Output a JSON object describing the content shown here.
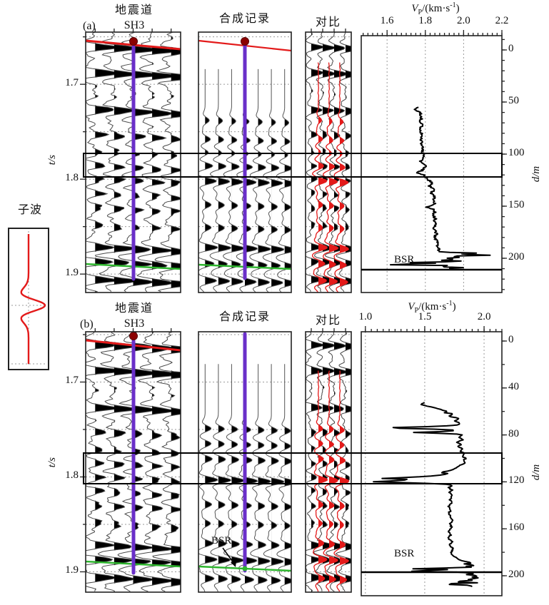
{
  "figure": {
    "panel_a_tag": "(a)",
    "panel_b_tag": "(b)",
    "wavelet_label": "子波",
    "col_titles": {
      "seismic_line1": "地震道",
      "seismic_line2": "SH3",
      "synthetic": "合成记录",
      "compare": "对比"
    },
    "vp_axis": {
      "v": "V",
      "sub": "P",
      "rest": "/(km·s",
      "sup": "-1",
      "close": ")"
    },
    "time_axis_label": "t/s",
    "depth_axis_label": "d/m",
    "bsr_label": "BSR"
  },
  "colors": {
    "red": "#e31a1a",
    "dark_red": "#8b0000",
    "purple": "#6a2fc9",
    "green": "#2db52d",
    "trace_stroke": "#4a4a4a",
    "grid_dot": "#9a9a9a",
    "black": "#000000"
  },
  "chart_data": [
    {
      "panel": "a",
      "type": "seismic-wiggle-with-velocity-log",
      "columns": [
        "地震道 SH3",
        "合成记录",
        "对比",
        "Vp log"
      ],
      "time_axis": {
        "label": "t/s",
        "ticks": [
          "1.7",
          "1.8",
          "1.9"
        ],
        "minor": [
          "1.65",
          "1.75",
          "1.85"
        ],
        "range": [
          1.645,
          1.92
        ]
      },
      "vp_axis": {
        "label": "Vp/(km·s-1)",
        "ticks": [
          "1.6",
          "1.8",
          "2.0",
          "2.2"
        ],
        "range": [
          1.465,
          2.2
        ]
      },
      "depth_axis": {
        "label": "d/m",
        "ticks": [
          "0",
          "50",
          "100",
          "150",
          "200"
        ],
        "minor_step": 10,
        "range": [
          0,
          233
        ]
      },
      "highlight_band_depth": [
        99,
        122
      ],
      "bsr": {
        "label": "BSR",
        "depth": 211
      },
      "seismic_events": [
        [
          1.661,
          1.2
        ],
        [
          1.688,
          1.35
        ],
        [
          1.727,
          1.15
        ],
        [
          1.753,
          0.55
        ],
        [
          1.771,
          0.35
        ],
        [
          1.786,
          0.5
        ],
        [
          1.8,
          0.55
        ],
        [
          1.815,
          0.45
        ],
        [
          1.83,
          0.45
        ],
        [
          1.849,
          0.4
        ],
        [
          1.872,
          1.1
        ],
        [
          1.887,
          0.9
        ],
        [
          1.906,
          1.15
        ]
      ],
      "synthetic_events": [
        [
          1.738,
          0.35
        ],
        [
          1.758,
          0.45
        ],
        [
          1.772,
          0.3
        ],
        [
          1.786,
          0.65
        ],
        [
          1.802,
          0.95
        ],
        [
          1.827,
          0.5
        ],
        [
          1.851,
          0.5
        ],
        [
          1.872,
          1.05
        ],
        [
          1.889,
          0.75
        ],
        [
          1.907,
          0.95
        ]
      ],
      "vp_log": [
        [
          55,
          1.76
        ],
        [
          57,
          1.745
        ],
        [
          60,
          1.77
        ],
        [
          64,
          1.78
        ],
        [
          68,
          1.775
        ],
        [
          72,
          1.78
        ],
        [
          76,
          1.775
        ],
        [
          80,
          1.78
        ],
        [
          84,
          1.775
        ],
        [
          88,
          1.785
        ],
        [
          92,
          1.78
        ],
        [
          96,
          1.785
        ],
        [
          100,
          1.79
        ],
        [
          104,
          1.785
        ],
        [
          107,
          1.775
        ],
        [
          110,
          1.8
        ],
        [
          113,
          1.795
        ],
        [
          116,
          1.78
        ],
        [
          118,
          1.755
        ],
        [
          120,
          1.79
        ],
        [
          122,
          1.8
        ],
        [
          125,
          1.815
        ],
        [
          128,
          1.84
        ],
        [
          131,
          1.82
        ],
        [
          134,
          1.855
        ],
        [
          137,
          1.83
        ],
        [
          140,
          1.85
        ],
        [
          143,
          1.842
        ],
        [
          146,
          1.85
        ],
        [
          149,
          1.845
        ],
        [
          151,
          1.8
        ],
        [
          153,
          1.84
        ],
        [
          156,
          1.85
        ],
        [
          159,
          1.84
        ],
        [
          162,
          1.855
        ],
        [
          165,
          1.845
        ],
        [
          168,
          1.855
        ],
        [
          171,
          1.84
        ],
        [
          174,
          1.85
        ],
        [
          177,
          1.858
        ],
        [
          180,
          1.85
        ],
        [
          183,
          1.858
        ],
        [
          186,
          1.865
        ],
        [
          189,
          1.858
        ],
        [
          191,
          1.87
        ],
        [
          193,
          1.865
        ],
        [
          194,
          1.88
        ],
        [
          195,
          2.06
        ],
        [
          196,
          1.95
        ],
        [
          197,
          2.17
        ],
        [
          198,
          1.92
        ],
        [
          199,
          1.99
        ],
        [
          200,
          1.9
        ],
        [
          201,
          1.96
        ],
        [
          202,
          1.88
        ],
        [
          203,
          2.03
        ],
        [
          204,
          1.7
        ],
        [
          205,
          1.89
        ],
        [
          206,
          1.53
        ],
        [
          207,
          1.96
        ],
        [
          208,
          1.86
        ],
        [
          209,
          2.0
        ],
        [
          210,
          1.9
        ]
      ]
    },
    {
      "panel": "b",
      "type": "seismic-wiggle-with-velocity-log",
      "columns": [
        "地震道 SH3",
        "合成记录",
        "对比",
        "Vp log"
      ],
      "time_axis": {
        "label": "t/s",
        "ticks": [
          "1.7",
          "1.8",
          "1.9"
        ],
        "minor": [
          "1.65",
          "1.75",
          "1.85"
        ],
        "range": [
          1.647,
          1.922
        ]
      },
      "vp_axis": {
        "label": "Vp/(km·s-1)",
        "ticks": [
          "1.0",
          "1.5",
          "2.0"
        ],
        "range": [
          0.965,
          2.15
        ]
      },
      "depth_axis": {
        "label": "d/m",
        "ticks": [
          "0",
          "40",
          "80",
          "120",
          "160",
          "200"
        ],
        "minor_step": 20,
        "range": [
          0,
          215
        ]
      },
      "highlight_band_depth": [
        95,
        122
      ],
      "bsr": {
        "label": "BSR",
        "depth": 197
      },
      "seismic_events": [
        [
          1.661,
          1.2
        ],
        [
          1.688,
          1.35
        ],
        [
          1.727,
          1.15
        ],
        [
          1.753,
          0.55
        ],
        [
          1.771,
          0.35
        ],
        [
          1.786,
          0.5
        ],
        [
          1.8,
          0.55
        ],
        [
          1.815,
          0.45
        ],
        [
          1.83,
          0.45
        ],
        [
          1.849,
          0.4
        ],
        [
          1.872,
          1.1
        ],
        [
          1.887,
          0.9
        ],
        [
          1.906,
          1.15
        ]
      ],
      "synthetic_events": [
        [
          1.749,
          0.5
        ],
        [
          1.765,
          0.5
        ],
        [
          1.781,
          0.6
        ],
        [
          1.803,
          1.05
        ],
        [
          1.829,
          0.55
        ],
        [
          1.849,
          0.45
        ],
        [
          1.87,
          0.65
        ],
        [
          1.887,
          1.0
        ],
        [
          1.907,
          0.75
        ]
      ],
      "vp_log": [
        [
          52,
          1.5
        ],
        [
          54,
          1.46
        ],
        [
          56,
          1.55
        ],
        [
          58,
          1.62
        ],
        [
          60,
          1.7
        ],
        [
          61,
          1.66
        ],
        [
          62,
          1.75
        ],
        [
          64,
          1.7
        ],
        [
          66,
          1.79
        ],
        [
          68,
          1.75
        ],
        [
          70,
          1.8
        ],
        [
          72,
          1.77
        ],
        [
          73,
          1.5
        ],
        [
          74,
          1.12
        ],
        [
          75,
          1.55
        ],
        [
          76,
          1.78
        ],
        [
          77,
          1.7
        ],
        [
          78,
          1.38
        ],
        [
          79,
          1.75
        ],
        [
          80,
          1.82
        ],
        [
          82,
          1.78
        ],
        [
          84,
          1.83
        ],
        [
          86,
          1.77
        ],
        [
          88,
          1.81
        ],
        [
          90,
          1.78
        ],
        [
          92,
          1.82
        ],
        [
          94,
          1.8
        ],
        [
          96,
          1.84
        ],
        [
          98,
          1.81
        ],
        [
          100,
          1.85
        ],
        [
          102,
          1.82
        ],
        [
          104,
          1.84
        ],
        [
          106,
          1.8
        ],
        [
          108,
          1.77
        ],
        [
          110,
          1.73
        ],
        [
          112,
          1.62
        ],
        [
          113,
          1.7
        ],
        [
          114,
          1.66
        ],
        [
          115,
          1.55
        ],
        [
          116,
          1.42
        ],
        [
          117,
          1.12
        ],
        [
          118,
          1.4
        ],
        [
          119,
          1.25
        ],
        [
          120,
          1.05
        ],
        [
          121,
          1.45
        ],
        [
          122,
          1.68
        ],
        [
          123,
          1.74
        ],
        [
          125,
          1.7
        ],
        [
          127,
          1.73
        ],
        [
          129,
          1.71
        ],
        [
          132,
          1.73
        ],
        [
          135,
          1.71
        ],
        [
          138,
          1.73
        ],
        [
          141,
          1.7
        ],
        [
          144,
          1.72
        ],
        [
          147,
          1.7
        ],
        [
          150,
          1.72
        ],
        [
          153,
          1.73
        ],
        [
          156,
          1.71
        ],
        [
          159,
          1.73
        ],
        [
          162,
          1.7
        ],
        [
          165,
          1.72
        ],
        [
          168,
          1.7
        ],
        [
          171,
          1.73
        ],
        [
          174,
          1.71
        ],
        [
          177,
          1.74
        ],
        [
          180,
          1.72
        ],
        [
          183,
          1.74
        ],
        [
          185,
          1.77
        ],
        [
          187,
          1.8
        ],
        [
          189,
          1.9
        ],
        [
          190,
          1.82
        ],
        [
          191,
          1.94
        ],
        [
          192,
          1.85
        ],
        [
          193,
          1.9
        ],
        [
          194,
          1.35
        ],
        [
          195,
          1.78
        ],
        [
          196,
          1.28
        ],
        [
          197,
          1.82
        ],
        [
          198,
          1.92
        ],
        [
          199,
          1.86
        ],
        [
          200,
          1.95
        ],
        [
          201,
          1.9
        ],
        [
          202,
          1.97
        ],
        [
          203,
          1.86
        ],
        [
          204,
          1.9
        ],
        [
          205,
          1.72
        ],
        [
          206,
          1.95
        ],
        [
          207,
          1.62
        ],
        [
          208,
          1.85
        ],
        [
          209,
          1.9
        ],
        [
          210,
          1.88
        ]
      ]
    }
  ],
  "wavelet": {
    "type": "ricker",
    "polarity": "positive-peak",
    "color": "#e31a1a"
  }
}
